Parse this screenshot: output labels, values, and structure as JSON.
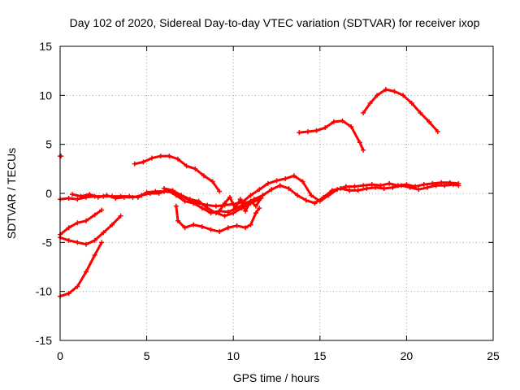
{
  "chart_data": {
    "type": "line",
    "title": "Day 102 of 2020, Sidereal Day-to-day VTEC variation (SDTVAR) for receiver ixop",
    "xlabel": "GPS time / hours",
    "ylabel": "SDTVAR / TECUs",
    "xlim": [
      0,
      25
    ],
    "ylim": [
      -15,
      15
    ],
    "xticks": [
      0,
      5,
      10,
      15,
      20,
      25
    ],
    "yticks": [
      -15,
      -10,
      -5,
      0,
      5,
      10,
      15
    ],
    "grid": true,
    "line_color": "#ff0000",
    "series": [
      {
        "name": "s1",
        "points": [
          [
            0,
            -0.6
          ],
          [
            0.5,
            -0.5
          ],
          [
            1,
            -0.6
          ],
          [
            1.5,
            -0.4
          ],
          [
            2,
            -0.3
          ],
          [
            2.5,
            -0.3
          ],
          [
            3,
            -0.3
          ],
          [
            3.5,
            -0.3
          ],
          [
            4,
            -0.3
          ],
          [
            4.5,
            -0.4
          ],
          [
            5,
            0.1
          ],
          [
            5.5,
            0.2
          ],
          [
            6,
            0.2
          ],
          [
            6.5,
            0.1
          ],
          [
            7,
            -0.3
          ],
          [
            7.5,
            -0.7
          ],
          [
            8,
            -1.0
          ],
          [
            8.5,
            -1.2
          ],
          [
            9,
            -1.3
          ],
          [
            9.5,
            -1.2
          ],
          [
            10,
            -1.1
          ],
          [
            10.5,
            -0.9
          ],
          [
            11,
            -0.2
          ],
          [
            11.5,
            0.4
          ],
          [
            12,
            1.0
          ],
          [
            12.5,
            1.3
          ],
          [
            13,
            1.5
          ],
          [
            13.5,
            1.8
          ],
          [
            14,
            1.2
          ],
          [
            14.5,
            -0.2
          ],
          [
            15,
            -0.8
          ],
          [
            15.5,
            -0.2
          ],
          [
            16,
            0.4
          ],
          [
            16.5,
            0.7
          ],
          [
            17,
            0.7
          ],
          [
            17.5,
            0.8
          ],
          [
            18,
            0.9
          ],
          [
            18.5,
            0.8
          ],
          [
            19,
            1.0
          ],
          [
            19.5,
            0.8
          ],
          [
            20,
            0.9
          ],
          [
            20.5,
            0.7
          ],
          [
            21,
            0.9
          ],
          [
            21.5,
            1.0
          ],
          [
            22,
            1.1
          ],
          [
            22.5,
            1.1
          ],
          [
            23,
            1.0
          ]
        ]
      },
      {
        "name": "s2",
        "points": [
          [
            0.7,
            -0.1
          ],
          [
            1.2,
            -0.3
          ],
          [
            1.7,
            -0.1
          ],
          [
            2.2,
            -0.4
          ],
          [
            2.7,
            -0.2
          ],
          [
            3.2,
            -0.5
          ],
          [
            3.7,
            -0.4
          ],
          [
            4.2,
            -0.4
          ],
          [
            4.7,
            -0.2
          ],
          [
            5.2,
            0.0
          ],
          [
            5.7,
            0.0
          ],
          [
            6.2,
            0.3
          ],
          [
            6.7,
            -0.2
          ],
          [
            7.2,
            -0.8
          ],
          [
            7.7,
            -1.0
          ],
          [
            8.2,
            -1.5
          ],
          [
            8.7,
            -2.0
          ],
          [
            9.2,
            -1.8
          ],
          [
            9.7,
            -1.9
          ],
          [
            10.2,
            -1.5
          ],
          [
            10.7,
            -1.0
          ],
          [
            11.2,
            -0.6
          ],
          [
            11.7,
            -0.2
          ],
          [
            12.2,
            0.4
          ],
          [
            12.7,
            0.8
          ],
          [
            13.2,
            0.5
          ],
          [
            13.7,
            -0.2
          ],
          [
            14.2,
            -0.7
          ],
          [
            14.7,
            -1.0
          ],
          [
            15.2,
            -0.4
          ],
          [
            15.7,
            0.3
          ],
          [
            16.2,
            0.5
          ],
          [
            16.7,
            0.3
          ],
          [
            17.2,
            0.3
          ],
          [
            17.7,
            0.5
          ],
          [
            18.2,
            0.6
          ],
          [
            18.7,
            0.5
          ],
          [
            19.2,
            0.6
          ],
          [
            19.7,
            0.8
          ],
          [
            20.2,
            0.6
          ],
          [
            20.7,
            0.4
          ],
          [
            21.2,
            0.6
          ],
          [
            21.7,
            0.8
          ],
          [
            22.2,
            0.8
          ],
          [
            22.7,
            0.9
          ],
          [
            23,
            0.8
          ]
        ]
      },
      {
        "name": "s3",
        "points": [
          [
            6.0,
            0.5
          ],
          [
            6.5,
            0.3
          ],
          [
            7.0,
            -0.2
          ],
          [
            7.5,
            -0.6
          ],
          [
            8.0,
            -0.8
          ],
          [
            8.5,
            -1.5
          ],
          [
            9.0,
            -2.0
          ],
          [
            9.5,
            -2.3
          ],
          [
            10.0,
            -2.0
          ],
          [
            10.5,
            -1.5
          ],
          [
            11.0,
            -1.0
          ],
          [
            11.5,
            -0.6
          ]
        ]
      },
      {
        "name": "s4",
        "points": [
          [
            4.3,
            3.0
          ],
          [
            4.8,
            3.2
          ],
          [
            5.3,
            3.6
          ],
          [
            5.8,
            3.8
          ],
          [
            6.3,
            3.8
          ],
          [
            6.8,
            3.5
          ],
          [
            7.3,
            2.8
          ],
          [
            7.8,
            2.5
          ],
          [
            8.3,
            1.8
          ],
          [
            8.8,
            1.2
          ],
          [
            9.2,
            0.2
          ]
        ]
      },
      {
        "name": "s5",
        "points": [
          [
            6.7,
            -1.3
          ],
          [
            6.8,
            -2.8
          ],
          [
            7.2,
            -3.5
          ],
          [
            7.7,
            -3.2
          ],
          [
            8.2,
            -3.4
          ],
          [
            8.7,
            -3.7
          ],
          [
            9.2,
            -3.9
          ],
          [
            9.7,
            -3.5
          ],
          [
            10.2,
            -3.3
          ],
          [
            10.7,
            -3.5
          ],
          [
            11.0,
            -3.2
          ],
          [
            11.3,
            -2.0
          ],
          [
            11.5,
            -1.5
          ]
        ]
      },
      {
        "name": "s6",
        "points": [
          [
            9.2,
            -1.8
          ],
          [
            9.5,
            -1.0
          ],
          [
            9.8,
            -0.4
          ],
          [
            10.1,
            -1.5
          ],
          [
            10.4,
            -0.6
          ],
          [
            10.7,
            -1.8
          ],
          [
            11.0,
            -0.8
          ],
          [
            11.3,
            -1.3
          ],
          [
            11.6,
            -0.5
          ]
        ]
      },
      {
        "name": "s7",
        "points": [
          [
            0,
            -4.5
          ],
          [
            0.5,
            -4.8
          ],
          [
            1,
            -5.0
          ],
          [
            1.5,
            -5.2
          ],
          [
            2,
            -4.8
          ],
          [
            2.5,
            -4.0
          ],
          [
            3,
            -3.2
          ],
          [
            3.5,
            -2.3
          ]
        ]
      },
      {
        "name": "s8",
        "points": [
          [
            0,
            -4.2
          ],
          [
            0.5,
            -3.5
          ],
          [
            1,
            -3.0
          ],
          [
            1.5,
            -2.8
          ],
          [
            2,
            -2.2
          ],
          [
            2.4,
            -1.7
          ]
        ]
      },
      {
        "name": "s9",
        "points": [
          [
            0,
            -10.5
          ],
          [
            0.5,
            -10.2
          ],
          [
            1,
            -9.5
          ],
          [
            1.5,
            -8.0
          ],
          [
            2,
            -6.3
          ],
          [
            2.4,
            -5.0
          ]
        ]
      },
      {
        "name": "s10",
        "points": [
          [
            13.8,
            6.2
          ],
          [
            14.3,
            6.3
          ],
          [
            14.8,
            6.4
          ],
          [
            15.3,
            6.7
          ],
          [
            15.8,
            7.3
          ],
          [
            16.3,
            7.4
          ],
          [
            16.8,
            6.8
          ],
          [
            17.3,
            5.2
          ],
          [
            17.5,
            4.4
          ]
        ]
      },
      {
        "name": "s11",
        "points": [
          [
            17.5,
            8.2
          ],
          [
            17.9,
            9.2
          ],
          [
            18.3,
            10.0
          ],
          [
            18.8,
            10.6
          ],
          [
            19.3,
            10.4
          ],
          [
            19.8,
            10.0
          ],
          [
            20.3,
            9.2
          ],
          [
            20.8,
            8.2
          ],
          [
            21.3,
            7.3
          ],
          [
            21.8,
            6.3
          ]
        ]
      },
      {
        "name": "s12",
        "points": [
          [
            0,
            3.8
          ],
          [
            0.05,
            3.8
          ]
        ]
      }
    ]
  }
}
